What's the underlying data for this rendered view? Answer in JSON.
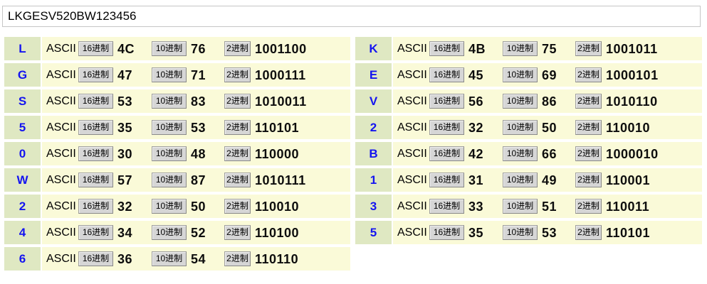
{
  "input": {
    "value": "LKGESV520BW123456"
  },
  "row_labels": {
    "ascii": "ASCII",
    "hex_base": "16进制",
    "dec_base": "10进制",
    "bin_base": "2进制"
  },
  "colors": {
    "row_background": "#fafad8",
    "char_cell_background": "#dfe8c2",
    "char_text": "#1414f0",
    "base_button_background": "#d6d6d6",
    "value_text": "#0d0d0d"
  },
  "columns": {
    "left": [
      {
        "char": "L",
        "hex": "4C",
        "dec": "76",
        "bin": "1001100"
      },
      {
        "char": "G",
        "hex": "47",
        "dec": "71",
        "bin": "1000111"
      },
      {
        "char": "S",
        "hex": "53",
        "dec": "83",
        "bin": "1010011"
      },
      {
        "char": "5",
        "hex": "35",
        "dec": "53",
        "bin": "110101"
      },
      {
        "char": "0",
        "hex": "30",
        "dec": "48",
        "bin": "110000"
      },
      {
        "char": "W",
        "hex": "57",
        "dec": "87",
        "bin": "1010111"
      },
      {
        "char": "2",
        "hex": "32",
        "dec": "50",
        "bin": "110010"
      },
      {
        "char": "4",
        "hex": "34",
        "dec": "52",
        "bin": "110100"
      },
      {
        "char": "6",
        "hex": "36",
        "dec": "54",
        "bin": "110110"
      }
    ],
    "right": [
      {
        "char": "K",
        "hex": "4B",
        "dec": "75",
        "bin": "1001011"
      },
      {
        "char": "E",
        "hex": "45",
        "dec": "69",
        "bin": "1000101"
      },
      {
        "char": "V",
        "hex": "56",
        "dec": "86",
        "bin": "1010110"
      },
      {
        "char": "2",
        "hex": "32",
        "dec": "50",
        "bin": "110010"
      },
      {
        "char": "B",
        "hex": "42",
        "dec": "66",
        "bin": "1000010"
      },
      {
        "char": "1",
        "hex": "31",
        "dec": "49",
        "bin": "110001"
      },
      {
        "char": "3",
        "hex": "33",
        "dec": "51",
        "bin": "110011"
      },
      {
        "char": "5",
        "hex": "35",
        "dec": "53",
        "bin": "110101"
      }
    ]
  }
}
